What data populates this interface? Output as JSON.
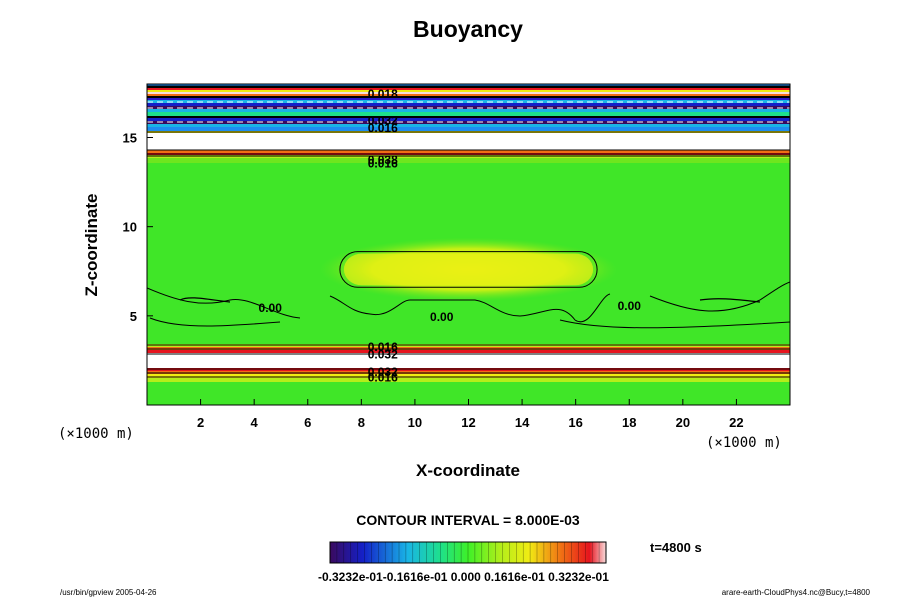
{
  "chart_data": {
    "type": "heatmap",
    "title": "Buoyancy",
    "xlabel": "X-coordinate",
    "ylabel": "Z-coordinate",
    "x_unit": "(×1000 m)",
    "z_unit": "(×1000 m)",
    "xlim": [
      0,
      24
    ],
    "ylim": [
      0,
      18
    ],
    "x_ticks": [
      2,
      4,
      6,
      8,
      10,
      12,
      14,
      16,
      18,
      20,
      22
    ],
    "y_ticks": [
      5,
      10,
      15
    ],
    "contour_interval": "CONTOUR INTERVAL = 8.000E-03",
    "time": "t=4800 s",
    "colorbar_labels": "-0.3232e-01-0.1616e-01 0.000 0.1616e-01 0.3232e-01",
    "colorbar_range": [
      -0.03232,
      0.03232
    ],
    "contour_labels": [
      {
        "text": "0.00",
        "x": 4.6,
        "z": 5.5
      },
      {
        "text": "0.00",
        "x": 11.0,
        "z": 5.0
      },
      {
        "text": "0.00",
        "x": 18.0,
        "z": 5.6
      },
      {
        "text": "0.038",
        "x": 8.8,
        "z": 13.8
      },
      {
        "text": "0.016",
        "x": 8.8,
        "z": 13.6
      },
      {
        "text": "0.016",
        "x": 8.8,
        "z": 3.3
      },
      {
        "text": "0.032",
        "x": 8.8,
        "z": 2.9
      },
      {
        "text": "0.032",
        "x": 8.8,
        "z": 1.9
      },
      {
        "text": "0.016",
        "x": 8.8,
        "z": 1.6
      },
      {
        "text": "0.018",
        "x": 8.8,
        "z": 17.5
      },
      {
        "text": "0.032",
        "x": 8.8,
        "z": 16.0
      },
      {
        "text": "0.016",
        "x": 8.8,
        "z": 15.6
      }
    ],
    "features": [
      {
        "name": "positive buoyancy anomaly",
        "x_range": [
          7.2,
          16.8
        ],
        "z_range": [
          6.6,
          8.6
        ],
        "value": 0.008
      },
      {
        "name": "strong positive layer",
        "z_range": [
          3.0,
          1.9
        ],
        "value": 0.032
      },
      {
        "name": "strong positive layer",
        "z_range": [
          15.6,
          13.7
        ],
        "value": 0.032
      },
      {
        "name": "alternating layers",
        "z_range": [
          15.5,
          17.8
        ],
        "value_range": [
          -0.032,
          0.032
        ]
      }
    ]
  },
  "footer": {
    "left": "/usr/bin/gpview 2005-04-26",
    "right": "arare-earth-CloudPhys4.nc@Bucy,t=4800"
  }
}
